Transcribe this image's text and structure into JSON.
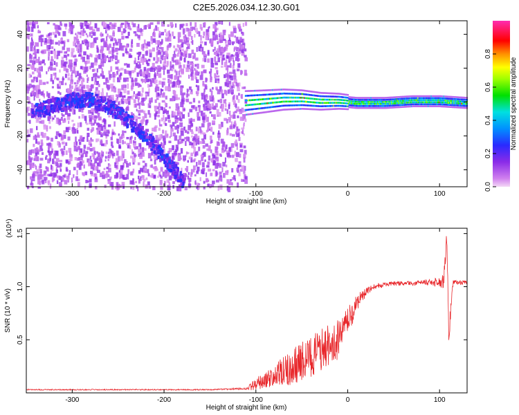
{
  "title": "C2E5.2026.034.12.30.G01",
  "colors": {
    "snr_line": "#e8262a",
    "spectrogram_base": "#5a1ee6",
    "axis": "#000000"
  },
  "chart_data": [
    {
      "type": "heatmap",
      "xlabel": "Height of straight line (km)",
      "ylabel": "Frequency (Hz)",
      "xlim": [
        -350,
        130
      ],
      "ylim": [
        -50,
        48
      ],
      "x_ticks": [
        -300,
        -200,
        -100,
        0,
        100
      ],
      "x_tick_labels": [
        "-300",
        "-200",
        "-100",
        "0",
        "100"
      ],
      "y_ticks": [
        -40,
        -20,
        0,
        20,
        40
      ],
      "y_tick_labels": [
        "-40",
        "-20",
        "0",
        "20",
        "40"
      ],
      "colorbar": {
        "label": "Normalized spectral amplitude",
        "colormap": "rainbow (magenta-blue-cyan-green-yellow-red-pink)",
        "range": [
          0,
          1
        ],
        "ticks": [
          0.0,
          0.2,
          0.4,
          0.6,
          0.8
        ],
        "tick_labels": [
          "0.0",
          "0.2",
          "0.4",
          "0.6",
          "0.8"
        ]
      },
      "features": [
        {
          "description": "broadband noise",
          "x_range": [
            -350,
            -112
          ],
          "f_range": [
            -50,
            48
          ],
          "amplitude": 0.12
        },
        {
          "description": "arc signal",
          "x": [
            -345,
            -320,
            -300,
            -280,
            -260,
            -240,
            -220,
            -200,
            -180
          ],
          "f": [
            -5,
            -1,
            2,
            2,
            -2,
            -10,
            -20,
            -33,
            -46
          ],
          "amplitude": 0.18
        },
        {
          "description": "main signal band",
          "x": [
            -112,
            -90,
            -70,
            -50,
            -30,
            -10,
            10,
            40,
            70,
            100,
            130
          ],
          "f": [
            0,
            1,
            2,
            2,
            1,
            1,
            0,
            0,
            1,
            1,
            0
          ],
          "amplitude": 0.65
        }
      ]
    },
    {
      "type": "line",
      "xlabel": "Height of straight line (km)",
      "ylabel": "SNR (10 * v/v)",
      "y_multiplier": "(x10⁴)",
      "xlim": [
        -350,
        130
      ],
      "ylim": [
        0,
        1.55
      ],
      "x_ticks": [
        -300,
        -200,
        -100,
        0,
        100
      ],
      "x_tick_labels": [
        "-300",
        "-200",
        "-100",
        "0",
        "100"
      ],
      "y_ticks": [
        0.5,
        1.0,
        1.5
      ],
      "y_tick_labels": [
        "0.5",
        "1.0",
        "1.5"
      ],
      "series": [
        {
          "x": [
            -350,
            -300,
            -250,
            -200,
            -150,
            -110,
            -100,
            -90,
            -80,
            -70,
            -60,
            -50,
            -40,
            -30,
            -20,
            -10,
            0,
            10,
            20,
            30,
            40,
            50,
            60,
            70,
            80,
            90,
            100,
            105,
            108,
            110,
            115,
            120,
            130
          ],
          "y": [
            0.03,
            0.03,
            0.03,
            0.03,
            0.03,
            0.04,
            0.08,
            0.12,
            0.15,
            0.2,
            0.24,
            0.3,
            0.33,
            0.4,
            0.45,
            0.5,
            0.65,
            0.85,
            0.95,
            1.0,
            1.02,
            1.03,
            1.03,
            1.03,
            1.04,
            1.04,
            1.04,
            1.1,
            1.5,
            0.55,
            1.05,
            1.04,
            1.04
          ],
          "jitter_amplitude": [
            0.005,
            0.005,
            0.005,
            0.005,
            0.005,
            0.01,
            0.06,
            0.08,
            0.1,
            0.15,
            0.18,
            0.2,
            0.22,
            0.22,
            0.2,
            0.2,
            0.15,
            0.08,
            0.04,
            0.03,
            0.02,
            0.02,
            0.02,
            0.02,
            0.02,
            0.03,
            0.05,
            0.12,
            0.1,
            0.1,
            0.03,
            0.02,
            0.02
          ]
        }
      ]
    }
  ]
}
